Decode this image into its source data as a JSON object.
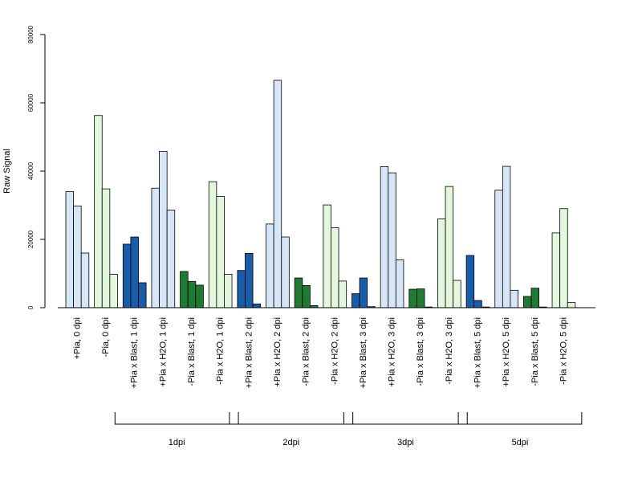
{
  "chart_data": {
    "type": "bar",
    "ylabel": "Raw Signal",
    "ylim": [
      0,
      80000
    ],
    "yticks": [
      0,
      20000,
      40000,
      60000,
      80000
    ],
    "grid": false,
    "categories": [
      "+Pia, 0 dpi",
      "-Pia, 0 dpi",
      "+Pia x Blast, 1 dpi",
      "+Pia x H2O, 1 dpi",
      "-Pia x Blast, 1 dpi",
      "-Pia x H2O, 1 dpi",
      "+Pia x Blast, 2 dpi",
      "+Pia x H2O, 2 dpi",
      "-Pia x Blast, 2 dpi",
      "-Pia x H2O, 2 dpi",
      "+Pia x Blast, 3 dpi",
      "+Pia x H2O, 3 dpi",
      "-Pia x Blast, 3 dpi",
      "-Pia x H2O, 3 dpi",
      "+Pia x Blast, 5 dpi",
      "+Pia x H2O, 5 dpi",
      "-Pia x Blast, 5 dpi",
      "-Pia x H2O, 5 dpi"
    ],
    "category_colors": [
      "#d6e6f7",
      "#e3f7dc",
      "#1a5ca8",
      "#d6e6f7",
      "#1f7a34",
      "#e3f7dc",
      "#1a5ca8",
      "#d6e6f7",
      "#1f7a34",
      "#e3f7dc",
      "#1a5ca8",
      "#d6e6f7",
      "#1f7a34",
      "#e3f7dc",
      "#1a5ca8",
      "#d6e6f7",
      "#1f7a34",
      "#e3f7dc"
    ],
    "values": [
      [
        34000,
        29800,
        16000
      ],
      [
        56300,
        34800,
        9800
      ],
      [
        18600,
        20700,
        7300
      ],
      [
        35000,
        45800,
        28600
      ],
      [
        10600,
        7700,
        6600
      ],
      [
        36900,
        32600,
        9800
      ],
      [
        10900,
        15900,
        1100
      ],
      [
        24500,
        66600,
        20700
      ],
      [
        8700,
        6500,
        600
      ],
      [
        30100,
        23400,
        7800
      ],
      [
        4100,
        8700,
        300
      ],
      [
        41300,
        39500,
        14000
      ],
      [
        5400,
        5500,
        200
      ],
      [
        26000,
        35500,
        8000
      ],
      [
        15300,
        2100,
        200
      ],
      [
        34400,
        41400,
        5100
      ],
      [
        3300,
        5700,
        200
      ],
      [
        21900,
        29000,
        1500
      ]
    ],
    "groups": [
      {
        "label": "1dpi",
        "first": 2,
        "last": 5
      },
      {
        "label": "2dpi",
        "first": 6,
        "last": 9
      },
      {
        "label": "3dpi",
        "first": 10,
        "last": 13
      },
      {
        "label": "5dpi",
        "first": 14,
        "last": 17
      }
    ]
  }
}
